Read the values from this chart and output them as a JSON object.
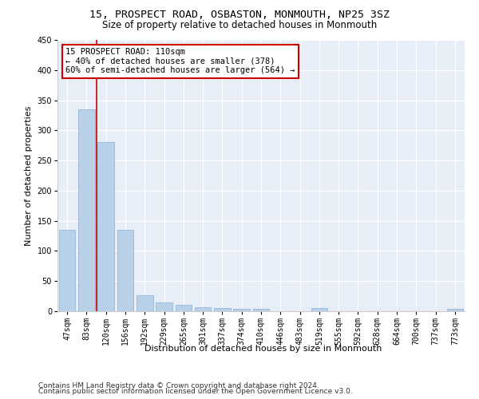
{
  "title1": "15, PROSPECT ROAD, OSBASTON, MONMOUTH, NP25 3SZ",
  "title2": "Size of property relative to detached houses in Monmouth",
  "xlabel": "Distribution of detached houses by size in Monmouth",
  "ylabel": "Number of detached properties",
  "categories": [
    "47sqm",
    "83sqm",
    "120sqm",
    "156sqm",
    "192sqm",
    "229sqm",
    "265sqm",
    "301sqm",
    "337sqm",
    "374sqm",
    "410sqm",
    "446sqm",
    "483sqm",
    "519sqm",
    "555sqm",
    "592sqm",
    "628sqm",
    "664sqm",
    "700sqm",
    "737sqm",
    "773sqm"
  ],
  "values": [
    135,
    335,
    280,
    135,
    27,
    15,
    11,
    7,
    5,
    4,
    4,
    0,
    0,
    5,
    0,
    0,
    0,
    0,
    0,
    0,
    4
  ],
  "bar_color": "#b8d0e8",
  "bar_edge_color": "#8aafd4",
  "background_color": "#e8eef8",
  "grid_color": "#ffffff",
  "annotation_text": "15 PROSPECT ROAD: 110sqm\n← 40% of detached houses are smaller (378)\n60% of semi-detached houses are larger (564) →",
  "annotation_box_color": "#ffffff",
  "annotation_box_edge_color": "#cc0000",
  "vline_color": "#cc0000",
  "ylim": [
    0,
    450
  ],
  "yticks": [
    0,
    50,
    100,
    150,
    200,
    250,
    300,
    350,
    400,
    450
  ],
  "footer1": "Contains HM Land Registry data © Crown copyright and database right 2024.",
  "footer2": "Contains public sector information licensed under the Open Government Licence v3.0.",
  "title_fontsize": 9.5,
  "subtitle_fontsize": 8.5,
  "annotation_fontsize": 7.5,
  "axis_label_fontsize": 8,
  "tick_fontsize": 7,
  "footer_fontsize": 6.5
}
